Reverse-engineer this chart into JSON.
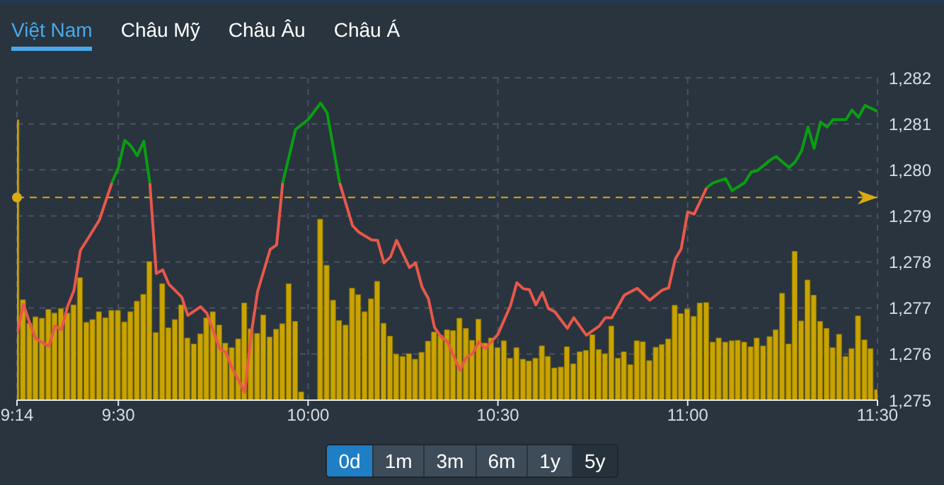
{
  "chart_data": {
    "type": "bar",
    "annotations": [
      "Việt Nam",
      "Châu Mỹ",
      "Châu Âu",
      "Châu Á",
      "0d",
      "1m",
      "3m",
      "6m",
      "1y",
      "5y"
    ],
    "xlim": [
      9.233,
      11.5
    ],
    "xticks": [
      {
        "value": 9.233,
        "label": "9:14"
      },
      {
        "value": 9.5,
        "label": "9:30"
      },
      {
        "value": 10,
        "label": "10:00"
      },
      {
        "value": 10.5,
        "label": "10:30"
      },
      {
        "value": 11,
        "label": "11:00"
      },
      {
        "value": 11.5,
        "label": "11:30"
      }
    ],
    "ylim": [
      1275,
      1282
    ],
    "yticks": [
      {
        "value": 1275,
        "label": "1,275"
      },
      {
        "value": 1276,
        "label": "1,276"
      },
      {
        "value": 1277,
        "label": "1,277"
      },
      {
        "value": 1278,
        "label": "1,278"
      },
      {
        "value": 1279,
        "label": "1,279"
      },
      {
        "value": 1280,
        "label": "1,280"
      },
      {
        "value": 1281,
        "label": "1,281"
      },
      {
        "value": 1282,
        "label": "1,282"
      }
    ],
    "grid": true,
    "legend": false,
    "ref_lines": [
      {
        "axis": "y",
        "value": 1279.4,
        "color": "#d9ab12",
        "line_style": "dashed"
      }
    ],
    "series": [
      {
        "color": "#c9a300",
        "x": [
          9.233,
          9.25,
          9.267,
          9.283,
          9.3,
          9.317,
          9.333,
          9.35,
          9.367,
          9.383,
          9.4,
          9.417,
          9.433,
          9.45,
          9.467,
          9.483,
          9.5,
          9.517,
          9.533,
          9.55,
          9.567,
          9.583,
          9.6,
          9.617,
          9.633,
          9.65,
          9.667,
          9.683,
          9.7,
          9.717,
          9.733,
          9.75,
          9.767,
          9.783,
          9.8,
          9.817,
          9.833,
          9.85,
          9.867,
          9.883,
          9.9,
          9.917,
          9.933,
          9.95,
          9.967,
          9.983,
          10.033,
          10.05,
          10.067,
          10.083,
          10.1,
          10.117,
          10.133,
          10.15,
          10.167,
          10.183,
          10.2,
          10.217,
          10.233,
          10.25,
          10.267,
          10.283,
          10.3,
          10.317,
          10.333,
          10.35,
          10.367,
          10.383,
          10.4,
          10.417,
          10.433,
          10.45,
          10.467,
          10.483,
          10.5,
          10.517,
          10.533,
          10.55,
          10.567,
          10.583,
          10.6,
          10.617,
          10.633,
          10.65,
          10.667,
          10.683,
          10.7,
          10.717,
          10.733,
          10.75,
          10.767,
          10.783,
          10.8,
          10.817,
          10.833,
          10.85,
          10.867,
          10.883,
          10.9,
          10.917,
          10.933,
          10.95,
          10.967,
          10.983,
          11.0,
          11.017,
          11.033,
          11.05,
          11.067,
          11.083,
          11.1,
          11.117,
          11.133,
          11.15,
          11.167,
          11.183,
          11.2,
          11.217,
          11.233,
          11.25,
          11.267,
          11.283,
          11.3,
          11.317,
          11.333,
          11.35,
          11.367,
          11.383,
          11.4,
          11.417,
          11.433,
          11.45,
          11.467,
          11.483,
          11.5
        ],
        "values": [
          1281.09,
          1277.18,
          1276.67,
          1276.81,
          1276.78,
          1276.97,
          1276.89,
          1276.99,
          1276.89,
          1277.07,
          1277.66,
          1276.69,
          1276.75,
          1276.92,
          1276.79,
          1276.95,
          1276.95,
          1276.7,
          1276.92,
          1277.15,
          1277.3,
          1278.01,
          1276.47,
          1277.53,
          1276.57,
          1276.75,
          1277.07,
          1276.35,
          1276.22,
          1276.44,
          1276.79,
          1276.92,
          1276.63,
          1276.24,
          1276.14,
          1276.33,
          1277.11,
          1276.55,
          1276.45,
          1276.85,
          1276.37,
          1276.54,
          1276.66,
          1277.53,
          1276.71,
          1275.18,
          1278.93,
          1277.93,
          1277.17,
          1276.73,
          1276.63,
          1277.43,
          1277.29,
          1276.92,
          1277.2,
          1277.58,
          1276.67,
          1276.39,
          1276.0,
          1275.95,
          1276.01,
          1275.89,
          1276.04,
          1276.28,
          1276.48,
          1276.41,
          1276.53,
          1276.51,
          1276.78,
          1276.56,
          1276.3,
          1276.76,
          1276.24,
          1276.35,
          1276.14,
          1276.29,
          1275.91,
          1276.14,
          1275.89,
          1275.85,
          1275.91,
          1276.18,
          1275.95,
          1275.7,
          1275.72,
          1276.16,
          1275.79,
          1276.05,
          1276.08,
          1276.42,
          1276.1,
          1276.01,
          1276.61,
          1275.91,
          1276.05,
          1275.77,
          1276.29,
          1276.27,
          1275.86,
          1276.15,
          1276.21,
          1276.33,
          1277.06,
          1276.88,
          1276.98,
          1276.82,
          1277.11,
          1277.12,
          1276.26,
          1276.35,
          1276.26,
          1276.29,
          1276.3,
          1276.26,
          1276.16,
          1276.35,
          1276.18,
          1276.38,
          1276.53,
          1277.32,
          1276.22,
          1278.23,
          1276.72,
          1277.61,
          1277.28,
          1276.71,
          1276.56,
          1276.14,
          1276.43,
          1275.95,
          1276.12,
          1276.83,
          1276.31,
          1276.12,
          1275.23
        ]
      },
      {
        "type": "line",
        "color": "#e8584a",
        "x": [
          9.233,
          9.25,
          9.267,
          9.283,
          9.317,
          9.333,
          9.35,
          9.367,
          9.383,
          9.4,
          9.417,
          9.45,
          9.483,
          9.5,
          9.583,
          9.6,
          9.617,
          9.633,
          9.667,
          9.683,
          9.717,
          9.733,
          9.767,
          9.783,
          9.8,
          9.833,
          9.85,
          9.867,
          9.9,
          9.917,
          9.933,
          9.967,
          10.083,
          10.117,
          10.133,
          10.167,
          10.183,
          10.2,
          10.217,
          10.233,
          10.267,
          10.283,
          10.3,
          10.317,
          10.333,
          10.35,
          10.367,
          10.4,
          10.417,
          10.433,
          10.45,
          10.467,
          10.5,
          10.533,
          10.55,
          10.567,
          10.583,
          10.6,
          10.617,
          10.633,
          10.65,
          10.683,
          10.7,
          10.733,
          10.767,
          10.783,
          10.8,
          10.833,
          10.867,
          10.9,
          10.933,
          10.95,
          10.967,
          10.983,
          11.0,
          11.017,
          11.05
        ],
        "values": [
          1276.43,
          1277.08,
          1276.66,
          1276.33,
          1276.17,
          1276.61,
          1276.53,
          1277.05,
          1277.38,
          1278.25,
          1278.47,
          1278.91,
          1279.72,
          null,
          1279.72,
          1277.75,
          1277.83,
          1277.52,
          1277.24,
          1276.84,
          1277.03,
          1276.89,
          1276.12,
          1276.04,
          1275.7,
          1275.17,
          1276.43,
          1277.36,
          1278.27,
          1278.37,
          1279.72,
          null,
          1279.72,
          1278.79,
          1278.65,
          1278.48,
          1278.47,
          1277.98,
          1278.11,
          1278.47,
          1277.88,
          1277.98,
          1277.46,
          1277.2,
          1276.58,
          1276.38,
          1276.27,
          1275.65,
          1275.93,
          1276.01,
          1276.27,
          1276.12,
          1276.43,
          1277.05,
          1277.55,
          1277.42,
          1277.4,
          1277.07,
          1277.34,
          1276.99,
          1276.92,
          1276.56,
          1276.79,
          1276.41,
          1276.61,
          1276.79,
          1276.79,
          1277.28,
          1277.43,
          1277.17,
          1277.39,
          1277.44,
          1278.06,
          1278.29,
          1279.09,
          1279.04,
          1279.61
        ]
      },
      {
        "type": "line",
        "color": "#0a9e12",
        "x": [
          9.483,
          9.5,
          9.517,
          9.533,
          9.55,
          9.567,
          9.583,
          9.75,
          9.933,
          9.967,
          10.0,
          10.033,
          10.05,
          10.083,
          10.5,
          11.05,
          11.067,
          11.1,
          11.117,
          11.15,
          11.167,
          11.183,
          11.217,
          11.233,
          11.267,
          11.283,
          11.3,
          11.317,
          11.333,
          11.35,
          11.367,
          11.383,
          11.417,
          11.433,
          11.45,
          11.467,
          11.5
        ],
        "values": [
          1279.72,
          1280.05,
          1280.64,
          1280.52,
          1280.31,
          1280.62,
          1279.72,
          null,
          1279.72,
          1280.88,
          1281.09,
          1281.45,
          1281.24,
          1279.72,
          null,
          1279.61,
          1279.72,
          1279.81,
          1279.55,
          1279.72,
          1279.95,
          1279.98,
          1280.21,
          1280.29,
          1280.05,
          1280.17,
          1280.41,
          1280.93,
          1280.47,
          1281.04,
          1280.93,
          1281.09,
          1281.09,
          1281.3,
          1281.14,
          1281.4,
          1281.27
        ]
      }
    ]
  }
}
